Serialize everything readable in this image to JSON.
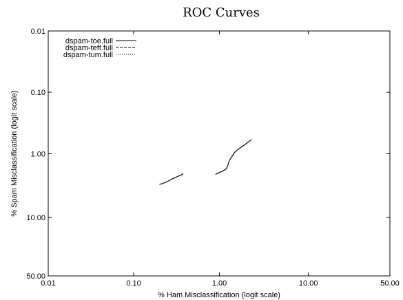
{
  "chart_data": {
    "type": "line",
    "title": "ROC Curves",
    "xlabel": "% Ham Misclassification (logit scale)",
    "ylabel": "% Spam Misclassification (logit scale)",
    "x_scale": "logit",
    "y_scale": "logit",
    "y_inverted": true,
    "xlim": [
      0.01,
      50
    ],
    "ylim": [
      0.01,
      50
    ],
    "x_ticks": [
      0.01,
      0.1,
      1,
      10,
      50
    ],
    "x_tick_labels": [
      "0.01",
      "0.10",
      "1.00",
      "10.00",
      "50.00"
    ],
    "y_ticks": [
      0.01,
      0.1,
      1,
      10,
      50
    ],
    "y_tick_labels": [
      "0.01",
      "0.10",
      "1.00",
      "10.00",
      "50.00"
    ],
    "grid": false,
    "legend_position": "top-left",
    "series": [
      {
        "name": "dspam-toe.full",
        "style": "solid",
        "segments": [
          [
            [
              0.2,
              3.1
            ],
            [
              0.22,
              3.0
            ],
            [
              0.24,
              2.85
            ],
            [
              0.26,
              2.7
            ],
            [
              0.28,
              2.55
            ],
            [
              0.3,
              2.45
            ],
            [
              0.33,
              2.3
            ],
            [
              0.36,
              2.2
            ],
            [
              0.38,
              2.1
            ]
          ],
          [
            [
              0.9,
              2.15
            ],
            [
              1.0,
              2.0
            ],
            [
              1.1,
              1.9
            ],
            [
              1.2,
              1.75
            ],
            [
              1.25,
              1.55
            ],
            [
              1.3,
              1.3
            ],
            [
              1.4,
              1.1
            ],
            [
              1.5,
              0.95
            ],
            [
              1.7,
              0.82
            ],
            [
              2.0,
              0.7
            ],
            [
              2.35,
              0.59
            ]
          ]
        ]
      },
      {
        "name": "dspam-teft.full",
        "style": "dashed",
        "segments": []
      },
      {
        "name": "dspam-tum.full",
        "style": "dotted",
        "segments": []
      }
    ]
  }
}
